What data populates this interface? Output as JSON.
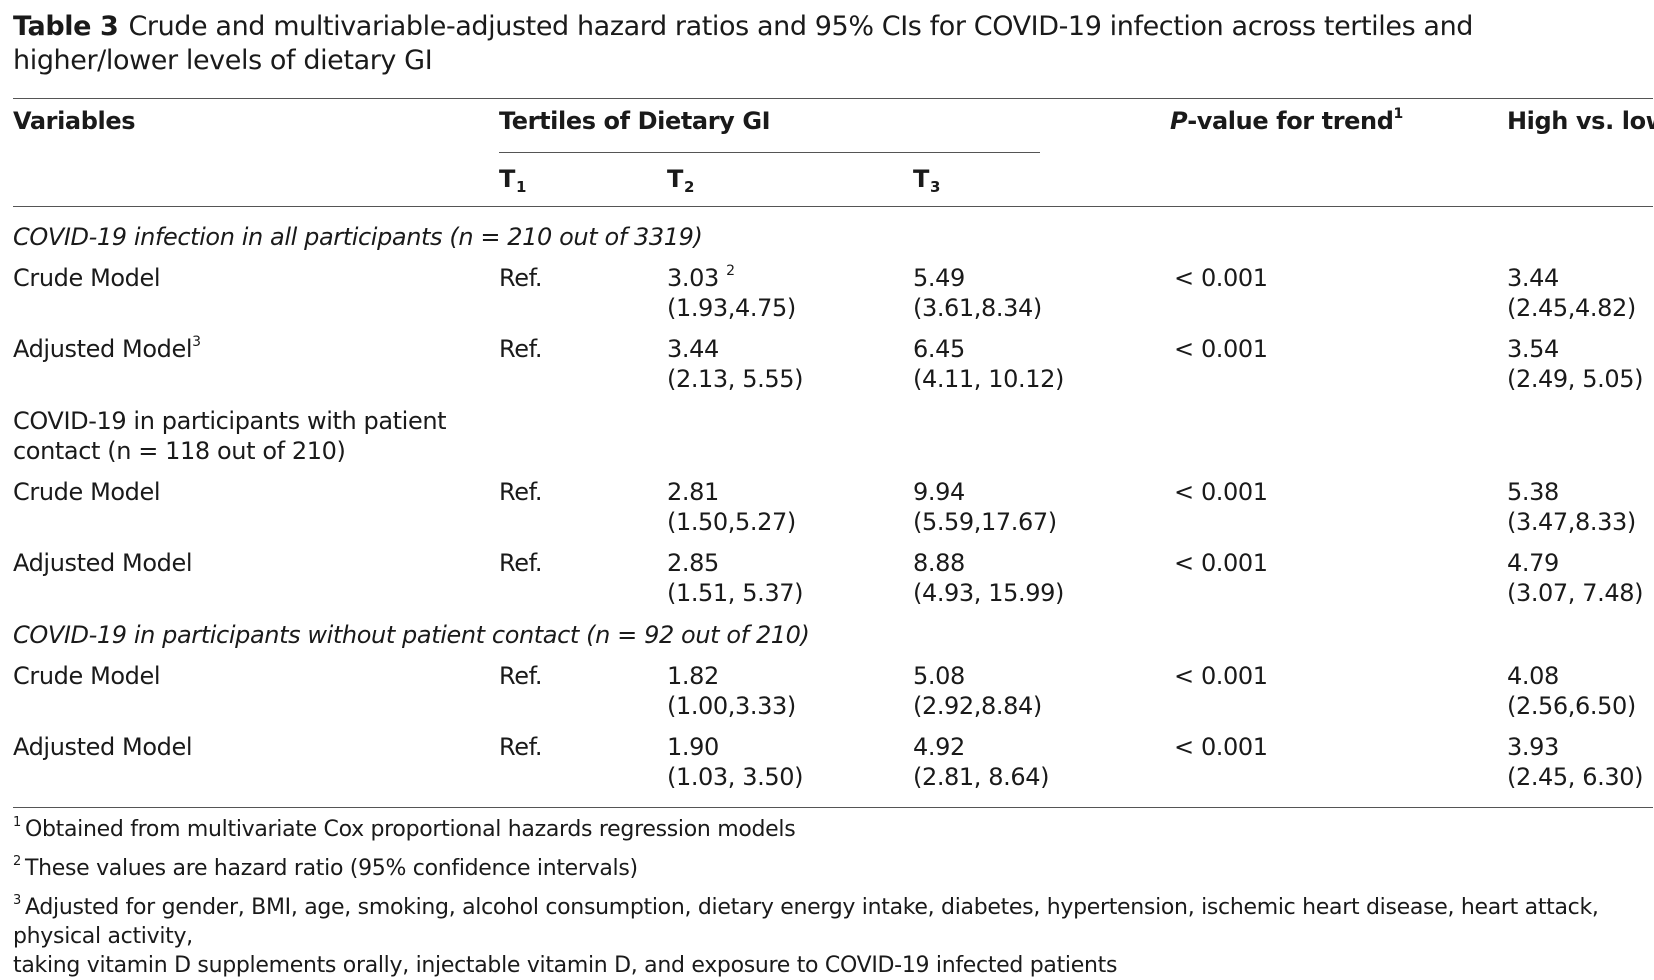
{
  "caption": {
    "label": "Table 3",
    "text": "Crude and multivariable-adjusted hazard ratios and 95% CIs for COVID-19 infection across tertiles and higher/lower levels of dietary GI"
  },
  "header": {
    "variables": "Variables",
    "tertiles": "Tertiles of Dietary GI",
    "t1": "T",
    "t1_sub": "1",
    "t2": "T",
    "t2_sub": "2",
    "t3": "T",
    "t3_sub": "3",
    "p_italic": "P",
    "p_rest": "-value for trend",
    "p_sup": "1",
    "high_low": "High vs. low"
  },
  "sections": {
    "s1": "COVID-19 infection in all participants (n = 210 out of 3319)",
    "s2_line1": "COVID-19 in participants with patient",
    "s2_line2": "contact (n = 118 out of 210)",
    "s3": "COVID-19 in participants without patient contact (n = 92 out of 210)"
  },
  "rows": [
    {
      "label": "Crude Model",
      "label_sup": "",
      "t1": "Ref.",
      "t2": "3.03",
      "t2_sup": "2",
      "t2_ci": "(1.93,4.75)",
      "t3": "5.49",
      "t3_ci": "(3.61,8.34)",
      "p": "< 0.001",
      "hl": "3.44",
      "hl_ci": "(2.45,4.82)"
    },
    {
      "label": "Adjusted Model",
      "label_sup": "3",
      "t1": "Ref.",
      "t2": "3.44",
      "t2_sup": "",
      "t2_ci": "(2.13, 5.55)",
      "t3": "6.45",
      "t3_ci": "(4.11, 10.12)",
      "p": "< 0.001",
      "hl": "3.54",
      "hl_ci": "(2.49, 5.05)"
    },
    {
      "label": "Crude Model",
      "label_sup": "",
      "t1": "Ref.",
      "t2": "2.81",
      "t2_sup": "",
      "t2_ci": "(1.50,5.27)",
      "t3": "9.94",
      "t3_ci": "(5.59,17.67)",
      "p": "< 0.001",
      "hl": "5.38",
      "hl_ci": "(3.47,8.33)"
    },
    {
      "label": "Adjusted Model",
      "label_sup": "",
      "t1": "Ref.",
      "t2": "2.85",
      "t2_sup": "",
      "t2_ci": "(1.51, 5.37)",
      "t3": "8.88",
      "t3_ci": "(4.93, 15.99)",
      "p": "< 0.001",
      "hl": "4.79",
      "hl_ci": "(3.07, 7.48)"
    },
    {
      "label": "Crude Model",
      "label_sup": "",
      "t1": "Ref.",
      "t2": "1.82",
      "t2_sup": "",
      "t2_ci": "(1.00,3.33)",
      "t3": "5.08",
      "t3_ci": "(2.92,8.84)",
      "p": "< 0.001",
      "hl": "4.08",
      "hl_ci": "(2.56,6.50)"
    },
    {
      "label": "Adjusted Model",
      "label_sup": "",
      "t1": "Ref.",
      "t2": "1.90",
      "t2_sup": "",
      "t2_ci": "(1.03, 3.50)",
      "t3": "4.92",
      "t3_ci": "(2.81, 8.64)",
      "p": "< 0.001",
      "hl": "3.93",
      "hl_ci": "(2.45, 6.30)"
    }
  ],
  "footnotes": [
    {
      "mark": "1",
      "text": "Obtained from multivariate Cox proportional hazards regression models"
    },
    {
      "mark": "2",
      "text": "These values are hazard ratio (95% confidence intervals)"
    },
    {
      "mark": "3",
      "text": "Adjusted for gender, BMI, age, smoking, alcohol consumption, dietary energy intake, diabetes, hypertension, ischemic heart disease, heart attack, physical activity,",
      "text2": "taking vitamin D supplements orally, injectable vitamin D, and exposure to COVID-19 infected patients"
    }
  ]
}
